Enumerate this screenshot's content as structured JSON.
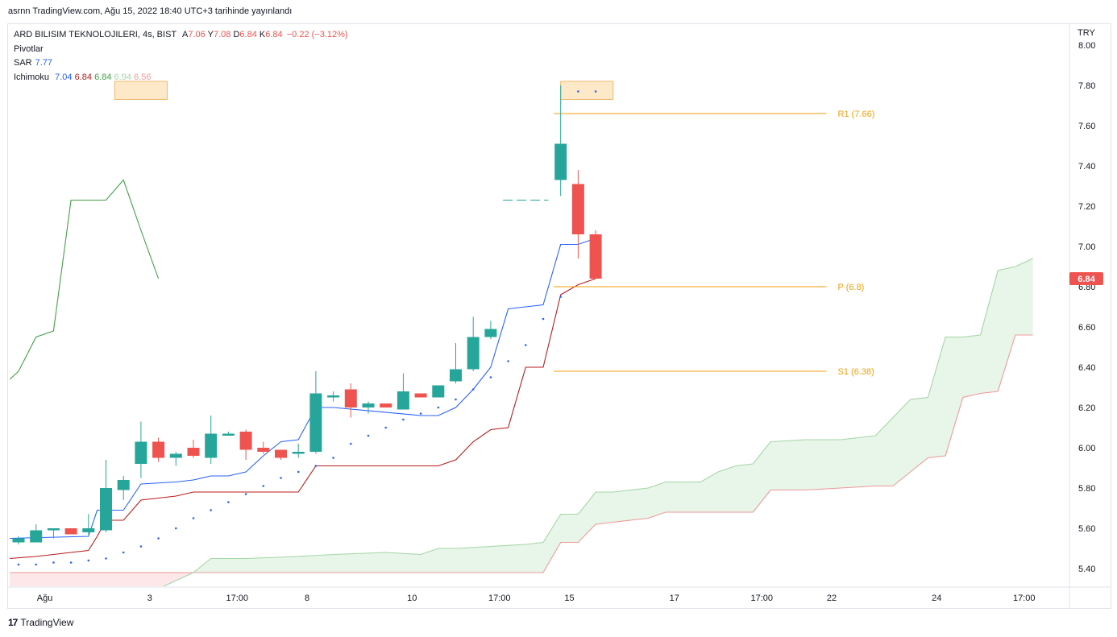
{
  "header": {
    "published": "asrnn TradingView.com, Ağu 15, 2022 18:40 UTC+3 tarihinde yayınlandı"
  },
  "legend": {
    "symbol": "ARD BILISIM TEKNOLOJILERI, 4s, BIST",
    "open_label": "A",
    "open": "7.06",
    "high_label": "Y",
    "high": "7.08",
    "low_label": "D",
    "low": "6.84",
    "close_label": "K",
    "close": "6.84",
    "change": "−0.22 (−3.12%)",
    "pivots_label": "Pivotlar",
    "sar_label": "SAR",
    "sar_value": "7.77",
    "ichimoku_label": "Ichimoku",
    "ichimoku_values": [
      "7.04",
      "6.84",
      "6.84",
      "6.94",
      "6.56"
    ]
  },
  "footer": {
    "brand": "TradingView",
    "brand_mark": "17"
  },
  "colors": {
    "up": "#26a69a",
    "down": "#ef5350",
    "tenkan": "#2962ff",
    "kijun": "#b71c1c",
    "chikou": "#43a047",
    "span_a": "#a5d6a7",
    "span_b": "#ef9a9a",
    "cloud_up": "#e8f5e9",
    "cloud_down": "#fde7e9",
    "pivot": "#f59e0b",
    "sar": "#2962ff"
  },
  "chart_data": {
    "type": "candlestick",
    "currency": "TRY",
    "last_price_label": "6.84",
    "ylim": [
      5.3,
      8.07
    ],
    "y_ticks": [
      "5.40",
      "5.60",
      "5.80",
      "6.00",
      "6.20",
      "6.40",
      "6.60",
      "6.80",
      "7.00",
      "7.20",
      "7.40",
      "7.60",
      "7.80",
      "8.00"
    ],
    "x_ticks": [
      {
        "bar": 1.5,
        "label": "Ağu"
      },
      {
        "bar": 7.5,
        "label": "3"
      },
      {
        "bar": 12.5,
        "label": "17:00"
      },
      {
        "bar": 16.5,
        "label": "8"
      },
      {
        "bar": 22.5,
        "label": "10"
      },
      {
        "bar": 27.5,
        "label": "17:00"
      },
      {
        "bar": 31.5,
        "label": "15"
      },
      {
        "bar": 37.5,
        "label": "17"
      },
      {
        "bar": 42.5,
        "label": "17:00"
      },
      {
        "bar": 46.5,
        "label": "22"
      },
      {
        "bar": 52.5,
        "label": "24"
      },
      {
        "bar": 57.5,
        "label": "17:00"
      }
    ],
    "candles": [
      {
        "o": 5.53,
        "h": 5.56,
        "l": 5.52,
        "c": 5.55
      },
      {
        "o": 5.53,
        "h": 5.62,
        "l": 5.53,
        "c": 5.59
      },
      {
        "o": 5.59,
        "h": 5.6,
        "l": 5.55,
        "c": 5.6
      },
      {
        "o": 5.6,
        "h": 5.6,
        "l": 5.57,
        "c": 5.57
      },
      {
        "o": 5.58,
        "h": 5.67,
        "l": 5.57,
        "c": 5.6
      },
      {
        "o": 5.59,
        "h": 5.94,
        "l": 5.58,
        "c": 5.8
      },
      {
        "o": 5.79,
        "h": 5.86,
        "l": 5.74,
        "c": 5.84
      },
      {
        "o": 5.92,
        "h": 6.13,
        "l": 5.85,
        "c": 6.03
      },
      {
        "o": 6.03,
        "h": 6.05,
        "l": 5.93,
        "c": 5.95
      },
      {
        "o": 5.95,
        "h": 5.98,
        "l": 5.91,
        "c": 5.97
      },
      {
        "o": 6.0,
        "h": 6.04,
        "l": 5.95,
        "c": 5.96
      },
      {
        "o": 5.95,
        "h": 6.16,
        "l": 5.92,
        "c": 6.07
      },
      {
        "o": 6.06,
        "h": 6.08,
        "l": 6.06,
        "c": 6.07
      },
      {
        "o": 6.08,
        "h": 6.09,
        "l": 5.94,
        "c": 5.99
      },
      {
        "o": 6.0,
        "h": 6.03,
        "l": 5.97,
        "c": 5.98
      },
      {
        "o": 5.99,
        "h": 5.99,
        "l": 5.94,
        "c": 5.95
      },
      {
        "o": 5.97,
        "h": 6.02,
        "l": 5.95,
        "c": 5.98
      },
      {
        "o": 5.98,
        "h": 6.38,
        "l": 5.97,
        "c": 6.27
      },
      {
        "o": 6.25,
        "h": 6.28,
        "l": 6.23,
        "c": 6.26
      },
      {
        "o": 6.29,
        "h": 6.32,
        "l": 6.15,
        "c": 6.2
      },
      {
        "o": 6.2,
        "h": 6.23,
        "l": 6.17,
        "c": 6.22
      },
      {
        "o": 6.22,
        "h": 6.22,
        "l": 6.2,
        "c": 6.2
      },
      {
        "o": 6.19,
        "h": 6.37,
        "l": 6.19,
        "c": 6.28
      },
      {
        "o": 6.27,
        "h": 6.27,
        "l": 6.25,
        "c": 6.25
      },
      {
        "o": 6.25,
        "h": 6.31,
        "l": 6.25,
        "c": 6.31
      },
      {
        "o": 6.33,
        "h": 6.52,
        "l": 6.32,
        "c": 6.39
      },
      {
        "o": 6.39,
        "h": 6.65,
        "l": 6.38,
        "c": 6.55
      },
      {
        "o": 6.55,
        "h": 6.63,
        "l": 6.54,
        "c": 6.59
      },
      {
        "o": 7.33,
        "h": 7.8,
        "l": 7.25,
        "c": 7.51
      },
      {
        "o": 7.31,
        "h": 7.38,
        "l": 6.94,
        "c": 7.06
      },
      {
        "o": 7.06,
        "h": 7.08,
        "l": 6.84,
        "c": 6.84
      }
    ],
    "candle_bars": [
      0,
      1,
      2,
      3,
      4,
      5,
      6,
      7,
      8,
      9,
      10,
      11,
      12,
      13,
      14,
      15,
      16,
      17,
      18,
      19,
      20,
      21,
      22,
      23,
      24,
      25,
      26,
      27,
      31,
      32,
      33
    ],
    "sar": [
      {
        "bar": 0,
        "y": 5.42
      },
      {
        "bar": 1,
        "y": 5.42
      },
      {
        "bar": 2,
        "y": 5.43
      },
      {
        "bar": 3,
        "y": 5.43
      },
      {
        "bar": 4,
        "y": 5.44
      },
      {
        "bar": 5,
        "y": 5.45
      },
      {
        "bar": 6,
        "y": 5.48
      },
      {
        "bar": 7,
        "y": 5.51
      },
      {
        "bar": 8,
        "y": 5.55
      },
      {
        "bar": 9,
        "y": 5.6
      },
      {
        "bar": 10,
        "y": 5.65
      },
      {
        "bar": 11,
        "y": 5.69
      },
      {
        "bar": 12,
        "y": 5.73
      },
      {
        "bar": 13,
        "y": 5.77
      },
      {
        "bar": 14,
        "y": 5.81
      },
      {
        "bar": 15,
        "y": 5.85
      },
      {
        "bar": 16,
        "y": 5.88
      },
      {
        "bar": 17,
        "y": 5.91
      },
      {
        "bar": 18,
        "y": 5.95
      },
      {
        "bar": 19,
        "y": 6.02
      },
      {
        "bar": 20,
        "y": 6.06
      },
      {
        "bar": 21,
        "y": 6.1
      },
      {
        "bar": 22,
        "y": 6.14
      },
      {
        "bar": 23,
        "y": 6.17
      },
      {
        "bar": 24,
        "y": 6.2
      },
      {
        "bar": 25,
        "y": 6.24
      },
      {
        "bar": 26,
        "y": 6.29
      },
      {
        "bar": 27,
        "y": 6.35
      },
      {
        "bar": 28,
        "y": 6.43
      },
      {
        "bar": 29,
        "y": 6.51
      },
      {
        "bar": 30,
        "y": 6.64
      },
      {
        "bar": 31,
        "y": 6.75
      },
      {
        "bar": 32,
        "y": 7.77
      },
      {
        "bar": 33,
        "y": 7.77
      }
    ],
    "tenkan": [
      [
        -0.5,
        5.55
      ],
      [
        4,
        5.56
      ],
      [
        4.5,
        5.69
      ],
      [
        6,
        5.69
      ],
      [
        7,
        5.82
      ],
      [
        9,
        5.83
      ],
      [
        10,
        5.84
      ],
      [
        11,
        5.86
      ],
      [
        12,
        5.86
      ],
      [
        13,
        5.88
      ],
      [
        14,
        5.96
      ],
      [
        15,
        6.03
      ],
      [
        16,
        6.04
      ],
      [
        17,
        6.2
      ],
      [
        18,
        6.2
      ],
      [
        23,
        6.16
      ],
      [
        24,
        6.16
      ],
      [
        25,
        6.2
      ],
      [
        26,
        6.29
      ],
      [
        27,
        6.4
      ],
      [
        28,
        6.69
      ],
      [
        29,
        6.7
      ],
      [
        30,
        6.71
      ],
      [
        31,
        7.01
      ],
      [
        32,
        7.01
      ],
      [
        33,
        7.04
      ]
    ],
    "kijun": [
      [
        -0.5,
        5.45
      ],
      [
        1,
        5.46
      ],
      [
        3,
        5.48
      ],
      [
        4,
        5.49
      ],
      [
        4.5,
        5.56
      ],
      [
        5,
        5.64
      ],
      [
        6,
        5.64
      ],
      [
        7,
        5.74
      ],
      [
        8,
        5.75
      ],
      [
        9,
        5.76
      ],
      [
        10,
        5.78
      ],
      [
        14,
        5.78
      ],
      [
        15,
        5.78
      ],
      [
        16,
        5.78
      ],
      [
        17,
        5.91
      ],
      [
        23,
        5.91
      ],
      [
        24,
        5.91
      ],
      [
        25,
        5.94
      ],
      [
        26,
        6.03
      ],
      [
        27,
        6.09
      ],
      [
        28,
        6.1
      ],
      [
        29,
        6.4
      ],
      [
        30,
        6.4
      ],
      [
        31,
        6.76
      ],
      [
        32,
        6.81
      ],
      [
        33,
        6.84
      ]
    ],
    "chikou": [
      [
        -0.5,
        6.34
      ],
      [
        0,
        6.38
      ],
      [
        1,
        6.55
      ],
      [
        2,
        6.58
      ],
      [
        3,
        7.23
      ],
      [
        4,
        7.23
      ],
      [
        5,
        7.23
      ],
      [
        6,
        7.33
      ],
      [
        7,
        7.08
      ],
      [
        8,
        6.84
      ]
    ],
    "span_a": [
      [
        -0.5,
        5.28
      ],
      [
        8,
        5.3
      ],
      [
        10,
        5.38
      ],
      [
        11,
        5.45
      ],
      [
        13,
        5.45
      ],
      [
        16,
        5.46
      ],
      [
        18,
        5.47
      ],
      [
        21,
        5.48
      ],
      [
        23,
        5.47
      ],
      [
        24,
        5.5
      ],
      [
        25,
        5.5
      ],
      [
        27,
        5.51
      ],
      [
        29,
        5.52
      ],
      [
        30,
        5.53
      ],
      [
        31,
        5.67
      ],
      [
        32,
        5.67
      ],
      [
        33,
        5.78
      ],
      [
        34,
        5.78
      ],
      [
        36,
        5.8
      ],
      [
        37,
        5.83
      ],
      [
        38,
        5.83
      ],
      [
        39,
        5.83
      ],
      [
        40,
        5.88
      ],
      [
        41,
        5.91
      ],
      [
        42,
        5.92
      ],
      [
        43,
        6.03
      ],
      [
        45,
        6.04
      ],
      [
        47,
        6.04
      ],
      [
        48,
        6.05
      ],
      [
        49,
        6.06
      ],
      [
        50,
        6.15
      ],
      [
        51,
        6.24
      ],
      [
        52,
        6.25
      ],
      [
        53,
        6.55
      ],
      [
        54,
        6.55
      ],
      [
        55,
        6.56
      ],
      [
        56,
        6.88
      ],
      [
        57,
        6.9
      ],
      [
        58,
        6.94
      ]
    ],
    "span_b": [
      [
        -0.5,
        5.38
      ],
      [
        30,
        5.38
      ],
      [
        31,
        5.53
      ],
      [
        32,
        5.53
      ],
      [
        33,
        5.62
      ],
      [
        34,
        5.63
      ],
      [
        36,
        5.65
      ],
      [
        37,
        5.68
      ],
      [
        42,
        5.68
      ],
      [
        43,
        5.79
      ],
      [
        45,
        5.79
      ],
      [
        47,
        5.8
      ],
      [
        49,
        5.81
      ],
      [
        50,
        5.81
      ],
      [
        51,
        5.88
      ],
      [
        52,
        5.95
      ],
      [
        53,
        5.96
      ],
      [
        54,
        6.25
      ],
      [
        55,
        6.27
      ],
      [
        56,
        6.28
      ],
      [
        57,
        6.56
      ],
      [
        58,
        6.56
      ]
    ],
    "pivots": [
      {
        "label": "R1 (7.66)",
        "value": 7.66
      },
      {
        "label": "P (6.8)",
        "value": 6.8
      },
      {
        "label": "S1 (6.38)",
        "value": 6.38
      }
    ],
    "pivot_start_bar": 31,
    "pivot_end_bar": 46,
    "prev_pivot_dashes": {
      "value": 7.23,
      "from_bar": 28,
      "to_bar": 30
    },
    "sar_highlight_boxes": [
      {
        "bar_from": 5.5,
        "bar_to": 8.5,
        "y_top": 7.82,
        "y_bottom": 7.73
      },
      {
        "bar_from": 31,
        "bar_to": 34,
        "y_top": 7.82,
        "y_bottom": 7.73
      }
    ]
  }
}
